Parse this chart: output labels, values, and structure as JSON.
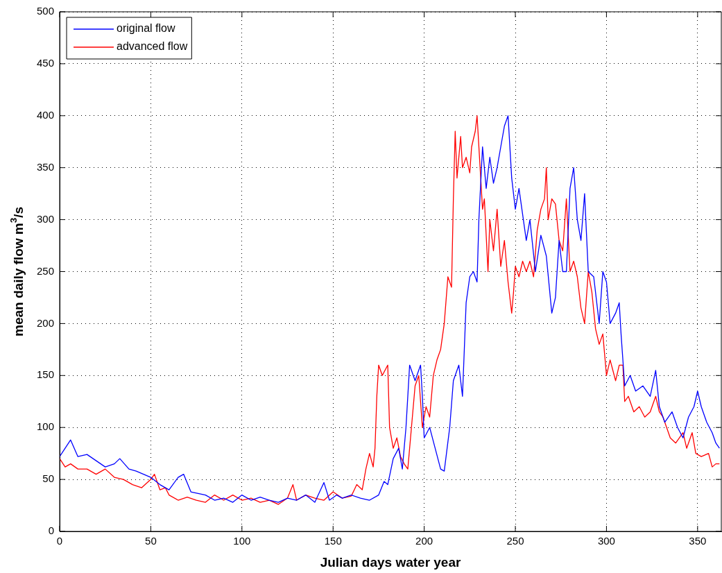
{
  "chart_data": {
    "type": "line",
    "xlabel": "Julian days water year",
    "ylabel": "mean daily flow m$^{3}$/s",
    "xlim": [
      0,
      363
    ],
    "xticks": [
      0,
      50,
      100,
      150,
      200,
      250,
      300,
      350
    ],
    "ylim": [
      0,
      500
    ],
    "yticks": [
      0,
      50,
      100,
      150,
      200,
      250,
      300,
      350,
      400,
      450,
      500
    ],
    "grid": true,
    "legend": "top left",
    "marker": "none",
    "line_style": "solid",
    "series": [
      {
        "name": "original flow",
        "color": "#0000ff",
        "x": [
          0,
          3,
          6,
          10,
          15,
          20,
          25,
          30,
          33,
          38,
          42,
          46,
          50,
          55,
          60,
          65,
          68,
          72,
          80,
          85,
          90,
          95,
          100,
          105,
          110,
          115,
          120,
          125,
          130,
          135,
          140,
          145,
          148,
          152,
          155,
          160,
          165,
          170,
          175,
          178,
          180,
          183,
          186,
          188,
          190,
          192,
          195,
          198,
          199,
          200,
          203,
          206,
          209,
          211,
          214,
          216,
          219,
          221,
          223,
          225,
          227,
          229,
          230,
          232,
          234,
          236,
          238,
          240,
          242,
          244,
          246,
          248,
          250,
          252,
          254,
          256,
          258,
          261,
          264,
          267,
          270,
          272,
          274,
          276,
          278,
          280,
          282,
          284,
          286,
          288,
          290,
          293,
          296,
          298,
          300,
          302,
          305,
          307,
          308,
          310,
          313,
          316,
          320,
          324,
          327,
          329,
          332,
          336,
          339,
          342,
          345,
          348,
          350,
          352,
          355,
          358,
          360,
          362
        ],
        "values": [
          72,
          80,
          88,
          72,
          74,
          68,
          62,
          65,
          70,
          60,
          58,
          55,
          52,
          45,
          40,
          52,
          55,
          38,
          35,
          30,
          32,
          28,
          35,
          30,
          33,
          30,
          28,
          32,
          30,
          35,
          28,
          47,
          30,
          35,
          32,
          35,
          32,
          30,
          35,
          48,
          45,
          70,
          80,
          60,
          100,
          160,
          145,
          160,
          130,
          90,
          100,
          80,
          60,
          58,
          100,
          145,
          160,
          130,
          220,
          245,
          250,
          240,
          300,
          370,
          330,
          360,
          335,
          350,
          370,
          390,
          400,
          340,
          310,
          330,
          305,
          280,
          300,
          250,
          285,
          265,
          210,
          225,
          280,
          250,
          250,
          330,
          350,
          300,
          280,
          325,
          250,
          245,
          200,
          250,
          240,
          200,
          210,
          220,
          190,
          140,
          150,
          135,
          140,
          130,
          155,
          120,
          105,
          115,
          100,
          90,
          110,
          120,
          135,
          120,
          105,
          95,
          85,
          80
        ]
      },
      {
        "name": "advanced flow",
        "color": "#ff0000",
        "x": [
          0,
          3,
          6,
          10,
          15,
          20,
          25,
          30,
          35,
          40,
          45,
          50,
          52,
          55,
          58,
          60,
          65,
          70,
          75,
          80,
          85,
          90,
          95,
          100,
          105,
          110,
          115,
          120,
          125,
          128,
          130,
          135,
          140,
          145,
          150,
          155,
          160,
          163,
          166,
          168,
          170,
          172,
          173,
          174,
          175,
          177,
          180,
          181,
          183,
          185,
          187,
          189,
          191,
          193,
          195,
          197,
          199,
          201,
          203,
          205,
          207,
          209,
          211,
          213,
          215,
          216,
          217,
          218,
          220,
          221,
          223,
          225,
          226,
          228,
          229,
          230,
          232,
          233,
          235,
          236,
          238,
          240,
          242,
          244,
          246,
          248,
          249,
          250,
          252,
          254,
          256,
          258,
          260,
          262,
          264,
          266,
          267,
          268,
          270,
          272,
          274,
          276,
          278,
          280,
          282,
          284,
          286,
          288,
          290,
          292,
          294,
          296,
          298,
          300,
          302,
          305,
          307,
          309,
          310,
          312,
          315,
          318,
          321,
          324,
          327,
          329,
          331,
          335,
          338,
          342,
          344,
          347,
          349,
          352,
          356,
          358,
          360,
          362
        ],
        "values": [
          70,
          62,
          65,
          60,
          60,
          55,
          60,
          52,
          50,
          45,
          42,
          50,
          55,
          40,
          42,
          35,
          30,
          33,
          30,
          28,
          35,
          30,
          35,
          30,
          32,
          28,
          30,
          26,
          32,
          45,
          30,
          35,
          32,
          30,
          38,
          32,
          34,
          45,
          40,
          60,
          75,
          62,
          80,
          130,
          160,
          150,
          160,
          100,
          80,
          90,
          72,
          65,
          60,
          100,
          140,
          150,
          100,
          120,
          110,
          150,
          165,
          175,
          200,
          245,
          235,
          320,
          385,
          340,
          380,
          350,
          360,
          345,
          370,
          385,
          400,
          370,
          310,
          320,
          250,
          300,
          270,
          310,
          255,
          280,
          240,
          210,
          230,
          255,
          245,
          260,
          250,
          260,
          245,
          290,
          310,
          320,
          350,
          300,
          320,
          315,
          280,
          270,
          320,
          250,
          260,
          245,
          215,
          200,
          250,
          230,
          195,
          180,
          190,
          150,
          165,
          145,
          160,
          160,
          125,
          130,
          115,
          120,
          110,
          115,
          130,
          115,
          110,
          90,
          85,
          95,
          80,
          95,
          75,
          72,
          75,
          62,
          65,
          65
        ]
      }
    ]
  }
}
